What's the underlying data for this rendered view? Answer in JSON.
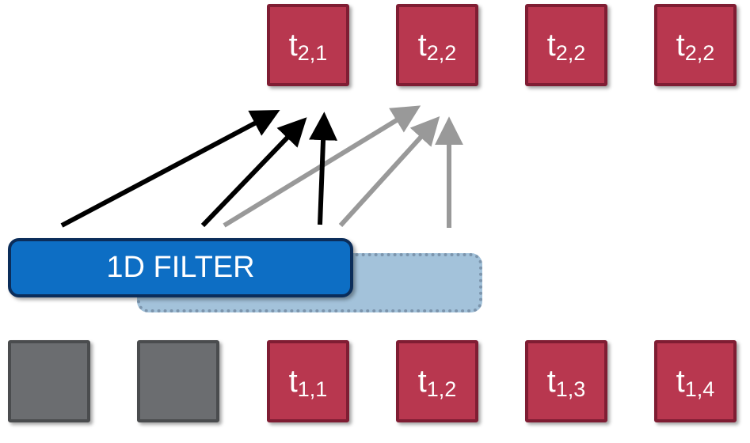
{
  "filter": {
    "label": "1D FILTER"
  },
  "output_row": [
    {
      "base": "t",
      "sub": "2,1"
    },
    {
      "base": "t",
      "sub": "2,2"
    },
    {
      "base": "t",
      "sub": "2,2"
    },
    {
      "base": "t",
      "sub": "2,2"
    }
  ],
  "input_row": [
    {
      "base": "t",
      "sub": "1,1"
    },
    {
      "base": "t",
      "sub": "1,2"
    },
    {
      "base": "t",
      "sub": "1,3"
    },
    {
      "base": "t",
      "sub": "1,4"
    }
  ],
  "colors": {
    "cell": "#b8374f",
    "cell_border": "#7f1d33",
    "padding_cell": "#6b6d70",
    "filter": "#0d6ec4",
    "filter_ghost": "#a3c2da",
    "arrow_active": "#000000",
    "arrow_inactive": "#999999"
  }
}
